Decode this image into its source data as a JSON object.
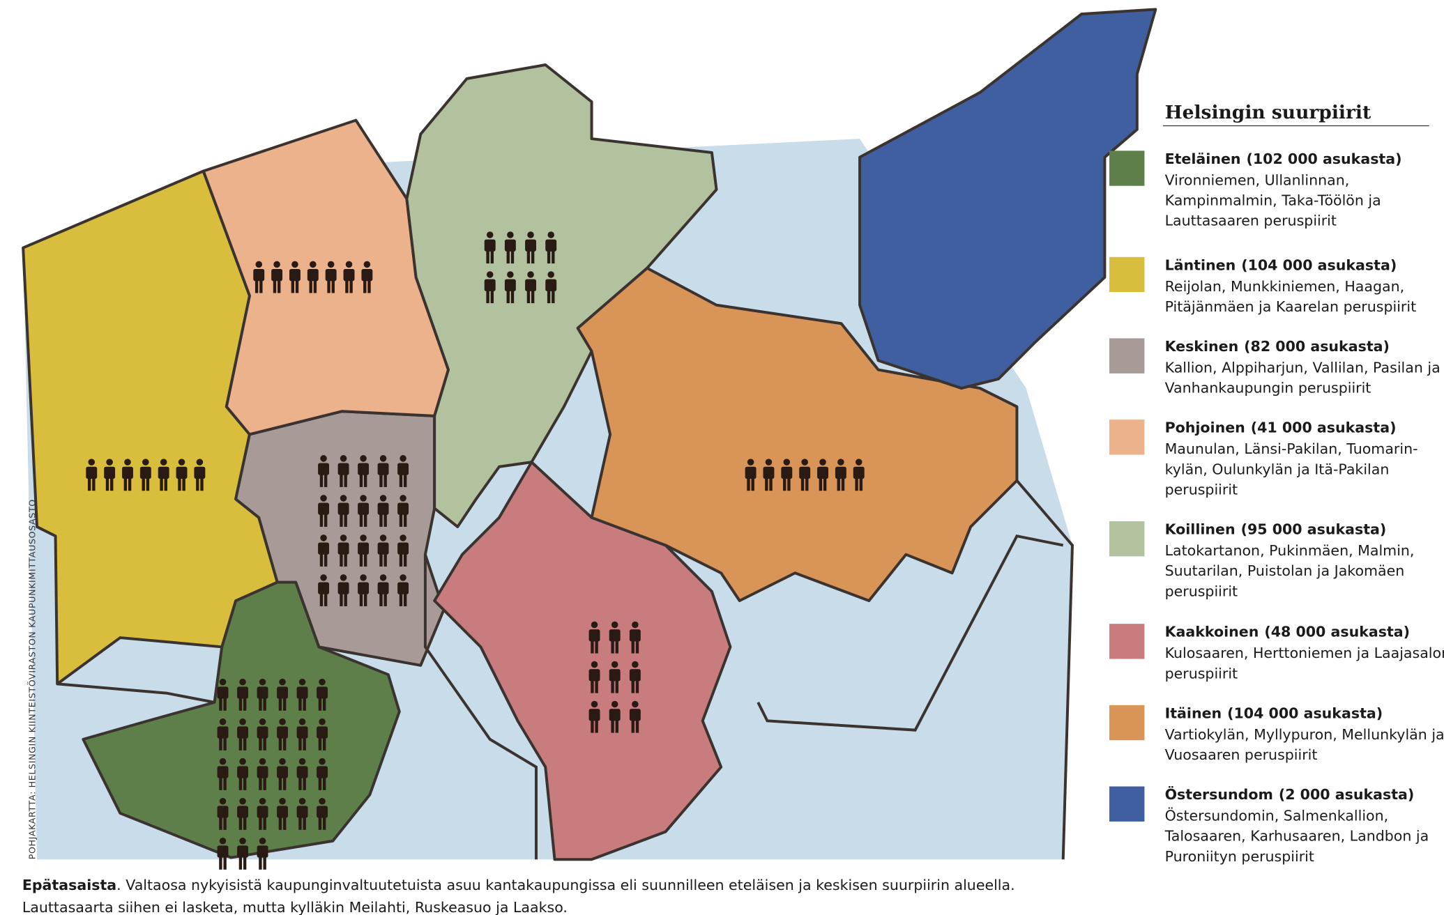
{
  "map": {
    "source_credit": "POHJAKARTTA: HELSINGIN KIINTEISTÖVIRASTON KAUPUNKIMITTAUSOSASTO"
  },
  "legend": {
    "title": "Helsingin suurpiirit",
    "items": [
      {
        "name": "Eteläinen",
        "population": "(102 000 asukasta)",
        "color": "#5f7f4a",
        "icons": 27,
        "description": [
          "Vironniemen, Ullanlinnan,",
          "Kampinmalmin, Taka-Töölön ja",
          "Lauttasaaren peruspiirit"
        ]
      },
      {
        "name": "Läntinen",
        "population": "(104 000 asukasta)",
        "color": "#d9bd3c",
        "icons": 7,
        "description": [
          "Reijolan, Munkkiniemen, Haagan,",
          "Pitäjänmäen ja Kaarelan peruspiirit"
        ]
      },
      {
        "name": "Keskinen",
        "population": "(82 000 asukasta)",
        "color": "#a89b97",
        "icons": 20,
        "description": [
          "Kallion, Alppiharjun, Vallilan, Pasilan ja",
          "Vanhankaupungin peruspiirit"
        ]
      },
      {
        "name": "Pohjoinen",
        "population": "(41 000 asukasta)",
        "color": "#ecb28c",
        "icons": 7,
        "description": [
          "Maunulan, Länsi-Pakilan, Tuomarin-",
          "kylän, Oulunkylän ja Itä-Pakilan",
          "peruspiirit"
        ]
      },
      {
        "name": "Koillinen",
        "population": "(95 000 asukasta)",
        "color": "#b2c29e",
        "icons": 8,
        "description": [
          "Latokartanon, Pukinmäen, Malmin,",
          "Suutarilan, Puistolan ja Jakomäen",
          "peruspiirit"
        ]
      },
      {
        "name": "Kaakkoinen",
        "population": "(48 000 asukasta)",
        "color": "#c97c7d",
        "icons": 9,
        "description": [
          "Kulosaaren, Herttoniemen ja Laajasalon",
          "peruspiirit"
        ]
      },
      {
        "name": "Itäinen",
        "population": "(104 000 asukasta)",
        "color": "#d89557",
        "icons": 7,
        "description": [
          "Vartiokylän, Myllypuron, Mellunkylän ja",
          "Vuosaaren peruspiirit"
        ]
      },
      {
        "name": "Östersundom",
        "population": "(2 000 asukasta)",
        "color": "#405fa0",
        "icons": 0,
        "description": [
          "Östersundomin, Salmenkallion,",
          "Talosaaren, Karhusaaren, Landbon ja",
          "Puroniityn peruspiirit"
        ]
      }
    ]
  },
  "caption": {
    "lead": "Epätasaista",
    "lines": [
      ". Valtaosa nykyisistä kaupunginvaltuutetuista asuu kantakaupungissa eli suunnilleen eteläisen ja keskisen suurpiirin alueella.",
      "Lauttasaarta siihen ei lasketa, mutta kylläkin Meilahti, Ruskeasuo ja Laakso."
    ]
  }
}
